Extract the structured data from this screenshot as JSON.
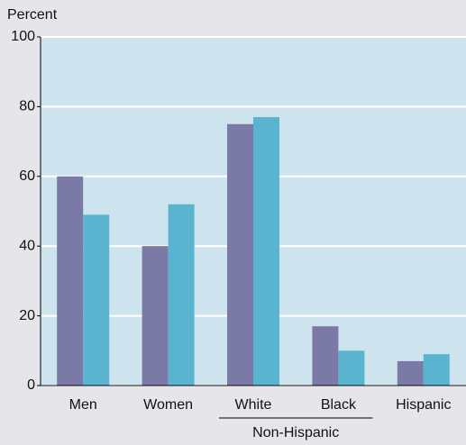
{
  "chart_data": {
    "type": "bar",
    "y_label": "Percent",
    "categories": [
      "Men",
      "Women",
      "White",
      "Black",
      "Hispanic"
    ],
    "series": [
      {
        "color": "#7b7aa6",
        "values": [
          60,
          40,
          75,
          17,
          7
        ]
      },
      {
        "color": "#5ab4d0",
        "values": [
          49,
          52,
          77,
          10,
          9
        ]
      }
    ],
    "annotations": [
      "Non-Hispanic"
    ],
    "ylim": [
      0,
      100
    ],
    "yticks": [
      0,
      20,
      40,
      60,
      80,
      100
    ],
    "grid": true
  }
}
